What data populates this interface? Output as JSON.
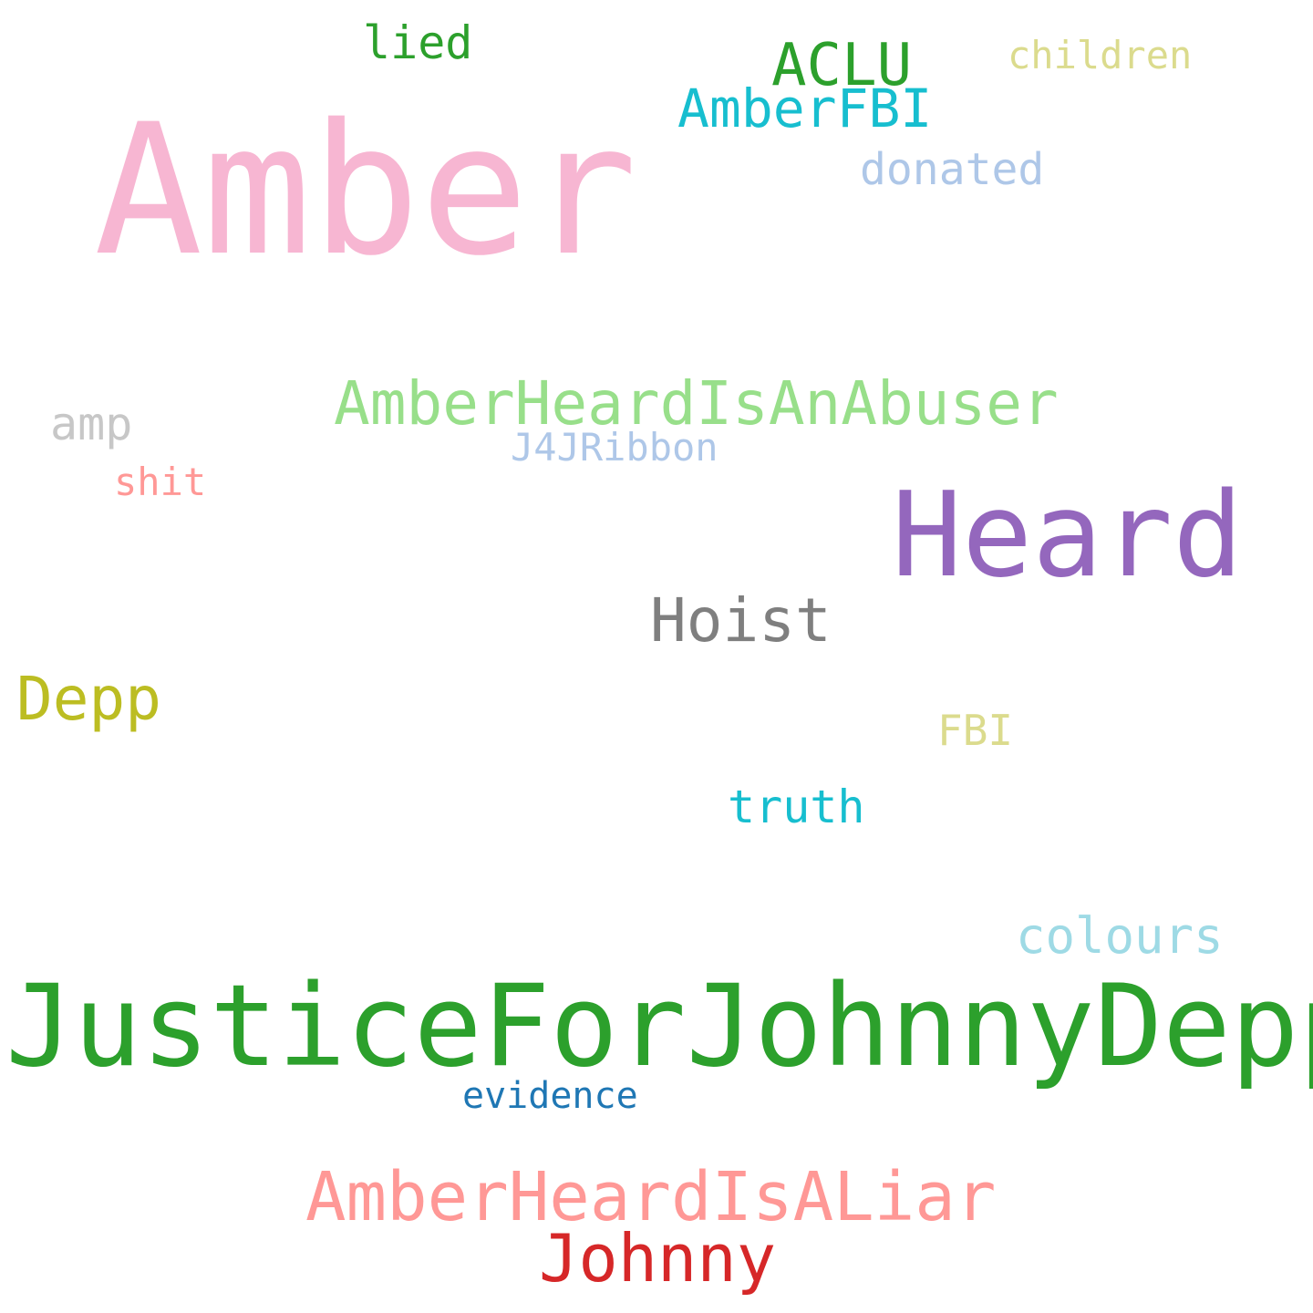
{
  "words": {
    "amber": {
      "text": "Amber",
      "color": "#f7b6d2"
    },
    "heard": {
      "text": "Heard",
      "color": "#9467bd"
    },
    "justice": {
      "text": "JusticeForJohnnyDepp",
      "color": "#2ca02c"
    },
    "hoist": {
      "text": "Hoist",
      "color": "#7f7f7f"
    },
    "abuser": {
      "text": "AmberHeardIsAnAbuser",
      "color": "#98df8a"
    },
    "liar": {
      "text": "AmberHeardIsALiar",
      "color": "#ff9896"
    },
    "johnny": {
      "text": "Johnny",
      "color": "#d62728"
    },
    "depp": {
      "text": "Depp",
      "color": "#bcbd22"
    },
    "aclu": {
      "text": "ACLU",
      "color": "#2ca02c"
    },
    "amberfbi": {
      "text": "AmberFBI",
      "color": "#17becf"
    },
    "colours": {
      "text": "colours",
      "color": "#9edae5"
    },
    "lied": {
      "text": "lied",
      "color": "#2ca02c"
    },
    "children": {
      "text": "children",
      "color": "#dbdb8d"
    },
    "donated": {
      "text": "donated",
      "color": "#aec7e8"
    },
    "amp": {
      "text": "amp",
      "color": "#c7c7c7"
    },
    "j4j": {
      "text": "J4JRibbon",
      "color": "#aec7e8"
    },
    "shit": {
      "text": "shit",
      "color": "#ff9896"
    },
    "fbi": {
      "text": "FBI",
      "color": "#dbdb8d"
    },
    "truth": {
      "text": "truth",
      "color": "#17becf"
    },
    "evidence": {
      "text": "evidence",
      "color": "#1f77b4"
    }
  }
}
